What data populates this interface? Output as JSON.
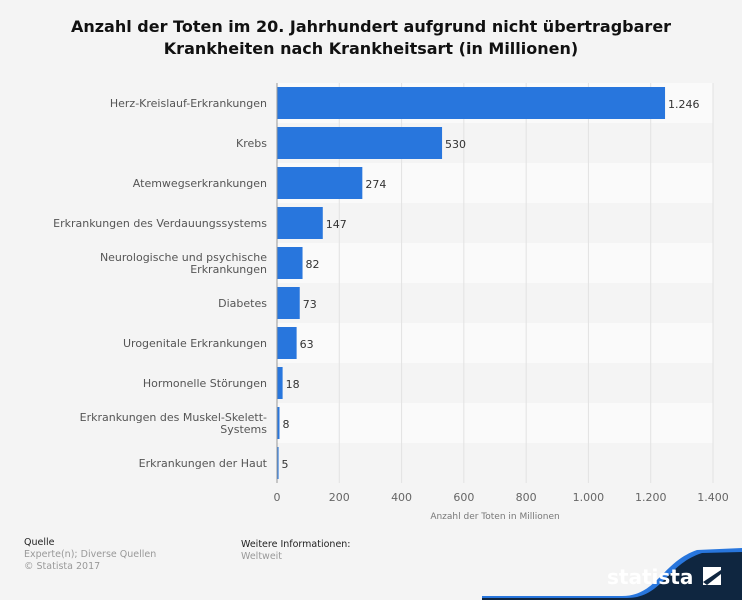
{
  "chart_data": {
    "type": "bar",
    "orientation": "horizontal",
    "title": "Anzahl der Toten im 20. Jahrhundert aufgrund nicht übertragbarer Krankheiten nach Krankheitsart (in Millionen)",
    "title_lines": [
      "Anzahl der Toten im 20. Jahrhundert aufgrund nicht übertragbarer",
      "Krankheiten nach Krankheitsart (in Millionen)"
    ],
    "categories": [
      [
        "Herz-Kreislauf-Erkrankungen"
      ],
      [
        "Krebs"
      ],
      [
        "Atemwegserkrankungen"
      ],
      [
        "Erkrankungen des Verdauungssystems"
      ],
      [
        "Neurologische und psychische",
        "Erkrankungen"
      ],
      [
        "Diabetes"
      ],
      [
        "Urogenitale Erkrankungen"
      ],
      [
        "Hormonelle Störungen"
      ],
      [
        "Erkrankungen des Muskel-Skelett-",
        "Systems"
      ],
      [
        "Erkrankungen der Haut"
      ]
    ],
    "values": [
      1246,
      530,
      274,
      147,
      82,
      73,
      63,
      18,
      8,
      5
    ],
    "value_labels": [
      "1.246",
      "530",
      "274",
      "147",
      "82",
      "73",
      "63",
      "18",
      "8",
      "5"
    ],
    "xlabel": "Anzahl der Toten in Millionen",
    "xlim": [
      0,
      1400
    ],
    "ticks": [
      0,
      200,
      400,
      600,
      800,
      1000,
      1200,
      1400
    ],
    "tick_labels": [
      "0",
      "200",
      "400",
      "600",
      "800",
      "1.000",
      "1.200",
      "1.400"
    ],
    "grid": true,
    "bar_color": "#2876dd"
  },
  "footer": {
    "source_heading": "Quelle",
    "source_lines": [
      "Experte(n); Diverse Quellen",
      "© Statista 2017"
    ],
    "info_heading": "Weitere Informationen:",
    "info_text": "Weltweit",
    "logo_text": "statista"
  },
  "colors": {
    "logo_bg": "#0f2640",
    "logo_accent": "#2876dd"
  }
}
